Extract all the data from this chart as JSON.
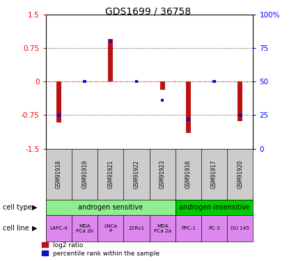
{
  "title": "GDS1699 / 36758",
  "samples": [
    "GSM91918",
    "GSM91919",
    "GSM91921",
    "GSM91922",
    "GSM91923",
    "GSM91916",
    "GSM91917",
    "GSM91920"
  ],
  "log2_ratio": [
    -0.92,
    0.0,
    0.95,
    0.0,
    -0.18,
    -1.15,
    0.0,
    -0.88
  ],
  "percentile_rank": [
    25.0,
    50.0,
    80.0,
    50.0,
    36.0,
    22.0,
    50.0,
    25.0
  ],
  "cell_type_groups": [
    {
      "label": "androgen sensitive",
      "start": 0,
      "end": 5,
      "color": "#90ee90"
    },
    {
      "label": "androgen insensitive",
      "start": 5,
      "end": 8,
      "color": "#00cc00"
    }
  ],
  "cell_lines": [
    "LAPC-4",
    "MDA\nPCa 2b",
    "LNCa\nP",
    "22Rv1",
    "MDA\nPCa 2a",
    "PPC-1",
    "PC-3",
    "DU 145"
  ],
  "cell_line_color": "#dd88ee",
  "sample_box_color": "#cccccc",
  "ylim": [
    -1.5,
    1.5
  ],
  "yticks_left": [
    -1.5,
    -0.75,
    0,
    0.75,
    1.5
  ],
  "yticks_right": [
    0,
    25,
    50,
    75,
    100
  ],
  "bar_color_red": "#bb1111",
  "bar_color_blue": "#1111bb",
  "legend_red": "log2 ratio",
  "legend_blue": "percentile rank within the sample",
  "zero_line_color": "#ff6666",
  "grid_color": "#333333"
}
